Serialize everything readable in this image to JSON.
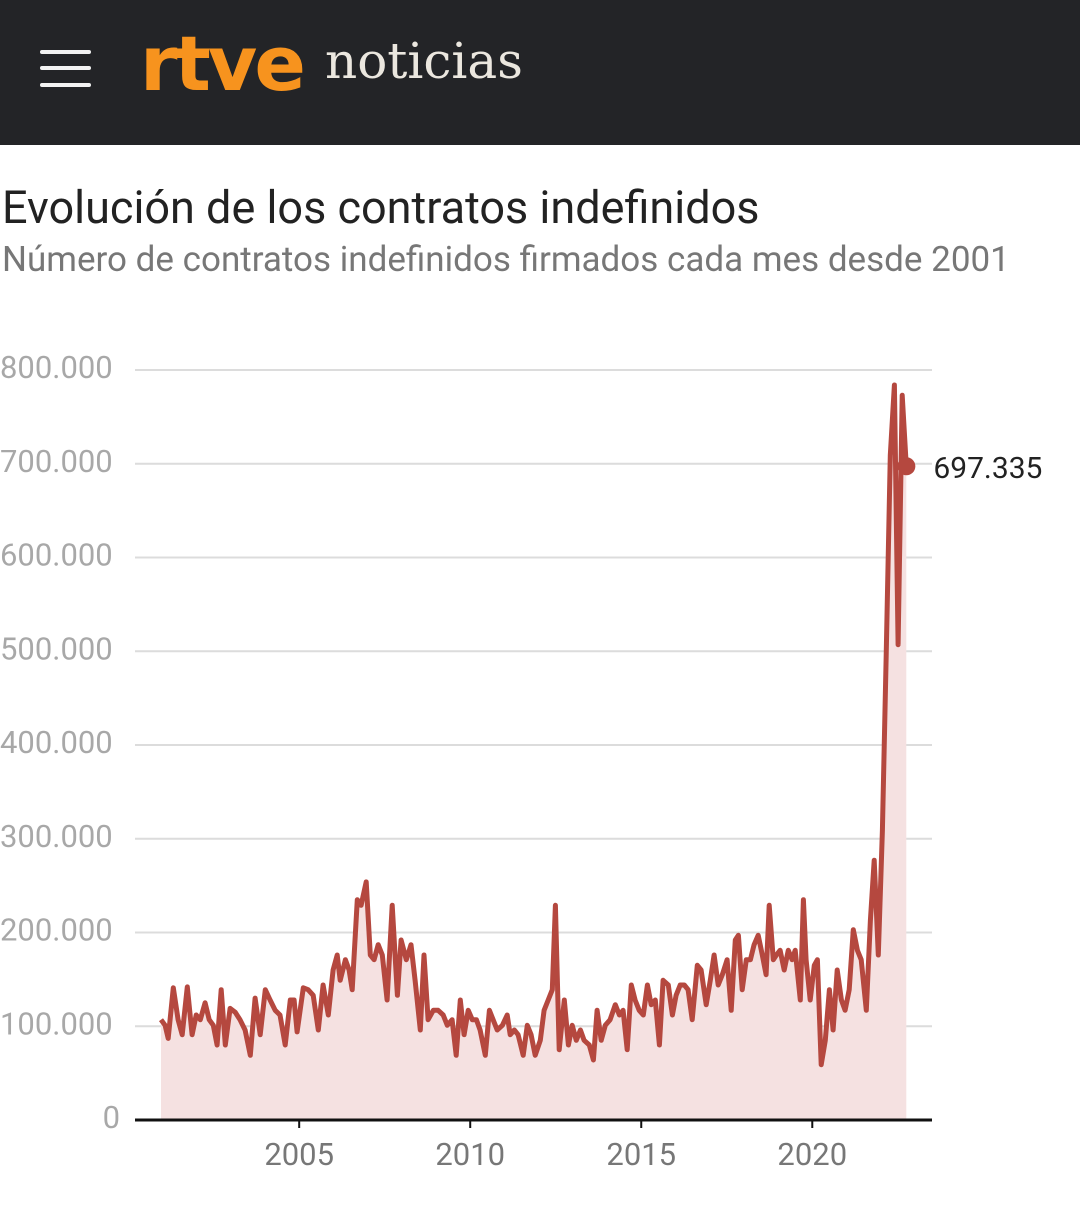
{
  "header": {
    "logo": "rtve",
    "section": "noticias"
  },
  "chart_data": {
    "type": "line",
    "title": "Evolución de los contratos indefinidos",
    "subtitle": "Número de contratos indefinidos firmados cada mes desde 2001",
    "color": "#b5483f",
    "area_color": "#f5e1e1",
    "area": true,
    "grid": true,
    "xlim": [
      2000.2,
      2023.5
    ],
    "xticks": [
      2005,
      2010,
      2015,
      2020
    ],
    "ylim": [
      0,
      800000
    ],
    "yticks": [
      0,
      {
        "value": 100000,
        "label": "100.000"
      },
      {
        "value": 200000,
        "label": "200.000"
      },
      {
        "value": 300000,
        "label": "300.000"
      },
      {
        "value": 400000,
        "label": "400.000"
      },
      {
        "value": 500000,
        "label": "500.000"
      },
      {
        "value": 600000,
        "label": "600.000"
      },
      {
        "value": 700000,
        "label": "700.000"
      },
      {
        "value": 800000,
        "label": "800.000"
      }
    ],
    "end_label": "697.335",
    "x": [
      2000.96,
      2001.08,
      2001.17,
      2001.32,
      2001.46,
      2001.58,
      2001.73,
      2001.87,
      2001.99,
      2002.11,
      2002.25,
      2002.37,
      2002.49,
      2002.6,
      2002.72,
      2002.84,
      2002.98,
      2003.13,
      2003.27,
      2003.42,
      2003.57,
      2003.71,
      2003.86,
      2004.01,
      2004.15,
      2004.3,
      2004.44,
      2004.59,
      2004.74,
      2004.85,
      2004.94,
      2005.12,
      2005.26,
      2005.41,
      2005.56,
      2005.7,
      2005.85,
      2005.99,
      2006.11,
      2006.2,
      2006.35,
      2006.46,
      2006.55,
      2006.7,
      2006.81,
      2006.96,
      2007.08,
      2007.19,
      2007.31,
      2007.43,
      2007.57,
      2007.72,
      2007.87,
      2007.98,
      2008.13,
      2008.27,
      2008.39,
      2008.54,
      2008.65,
      2008.77,
      2008.92,
      2009.06,
      2009.21,
      2009.33,
      2009.47,
      2009.59,
      2009.71,
      2009.82,
      2009.94,
      2010.06,
      2010.18,
      2010.29,
      2010.44,
      2010.56,
      2010.67,
      2010.79,
      2010.94,
      2011.08,
      2011.17,
      2011.29,
      2011.4,
      2011.55,
      2011.67,
      2011.78,
      2011.9,
      2012.05,
      2012.16,
      2012.28,
      2012.4,
      2012.49,
      2012.6,
      2012.75,
      2012.87,
      2012.98,
      2013.1,
      2013.22,
      2013.33,
      2013.48,
      2013.6,
      2013.71,
      2013.83,
      2013.95,
      2014.09,
      2014.24,
      2014.36,
      2014.47,
      2014.59,
      2014.71,
      2014.82,
      2014.94,
      2015.06,
      2015.18,
      2015.29,
      2015.41,
      2015.53,
      2015.64,
      2015.79,
      2015.91,
      2016.02,
      2016.14,
      2016.26,
      2016.37,
      2016.49,
      2016.64,
      2016.75,
      2016.9,
      2017.02,
      2017.13,
      2017.25,
      2017.37,
      2017.51,
      2017.63,
      2017.75,
      2017.84,
      2017.95,
      2018.07,
      2018.19,
      2018.3,
      2018.42,
      2018.54,
      2018.65,
      2018.74,
      2018.86,
      2018.95,
      2019.06,
      2019.18,
      2019.3,
      2019.41,
      2019.5,
      2019.65,
      2019.74,
      2019.82,
      2019.94,
      2020.06,
      2020.15,
      2020.26,
      2020.38,
      2020.5,
      2020.61,
      2020.73,
      2020.85,
      2020.96,
      2021.08,
      2021.2,
      2021.32,
      2021.43,
      2021.58,
      2021.7,
      2021.81,
      2021.93,
      2022.05,
      2022.16,
      2022.28,
      2022.4,
      2022.51,
      2022.63,
      2022.75
    ],
    "values": [
      107000,
      101000,
      87000,
      141000,
      107000,
      91000,
      142000,
      91000,
      112000,
      107000,
      125000,
      107000,
      101000,
      80000,
      139000,
      80000,
      119000,
      115000,
      107000,
      96000,
      69000,
      130000,
      91000,
      139000,
      128000,
      117000,
      112000,
      80000,
      128000,
      128000,
      94000,
      141000,
      139000,
      133000,
      96000,
      144000,
      112000,
      160000,
      176000,
      149000,
      171000,
      160000,
      139000,
      235000,
      229000,
      254000,
      176000,
      171000,
      187000,
      176000,
      128000,
      229000,
      133000,
      192000,
      171000,
      187000,
      149000,
      96000,
      176000,
      107000,
      117000,
      117000,
      112000,
      101000,
      107000,
      69000,
      128000,
      91000,
      117000,
      107000,
      107000,
      96000,
      69000,
      117000,
      107000,
      96000,
      101000,
      112000,
      91000,
      96000,
      91000,
      69000,
      101000,
      91000,
      69000,
      85000,
      117000,
      128000,
      139000,
      229000,
      75000,
      128000,
      80000,
      101000,
      85000,
      96000,
      85000,
      80000,
      64000,
      117000,
      85000,
      101000,
      107000,
      123000,
      112000,
      117000,
      75000,
      144000,
      128000,
      117000,
      112000,
      144000,
      123000,
      128000,
      80000,
      149000,
      144000,
      112000,
      133000,
      144000,
      144000,
      139000,
      107000,
      165000,
      160000,
      123000,
      149000,
      176000,
      144000,
      155000,
      171000,
      117000,
      192000,
      197000,
      139000,
      171000,
      171000,
      187000,
      197000,
      176000,
      155000,
      229000,
      171000,
      176000,
      181000,
      160000,
      181000,
      171000,
      181000,
      128000,
      235000,
      171000,
      128000,
      165000,
      171000,
      59000,
      85000,
      139000,
      96000,
      160000,
      128000,
      117000,
      139000,
      203000,
      181000,
      171000,
      117000,
      213000,
      277000,
      176000,
      309000,
      496000,
      709000,
      784000,
      507000,
      773000,
      697335
    ]
  }
}
